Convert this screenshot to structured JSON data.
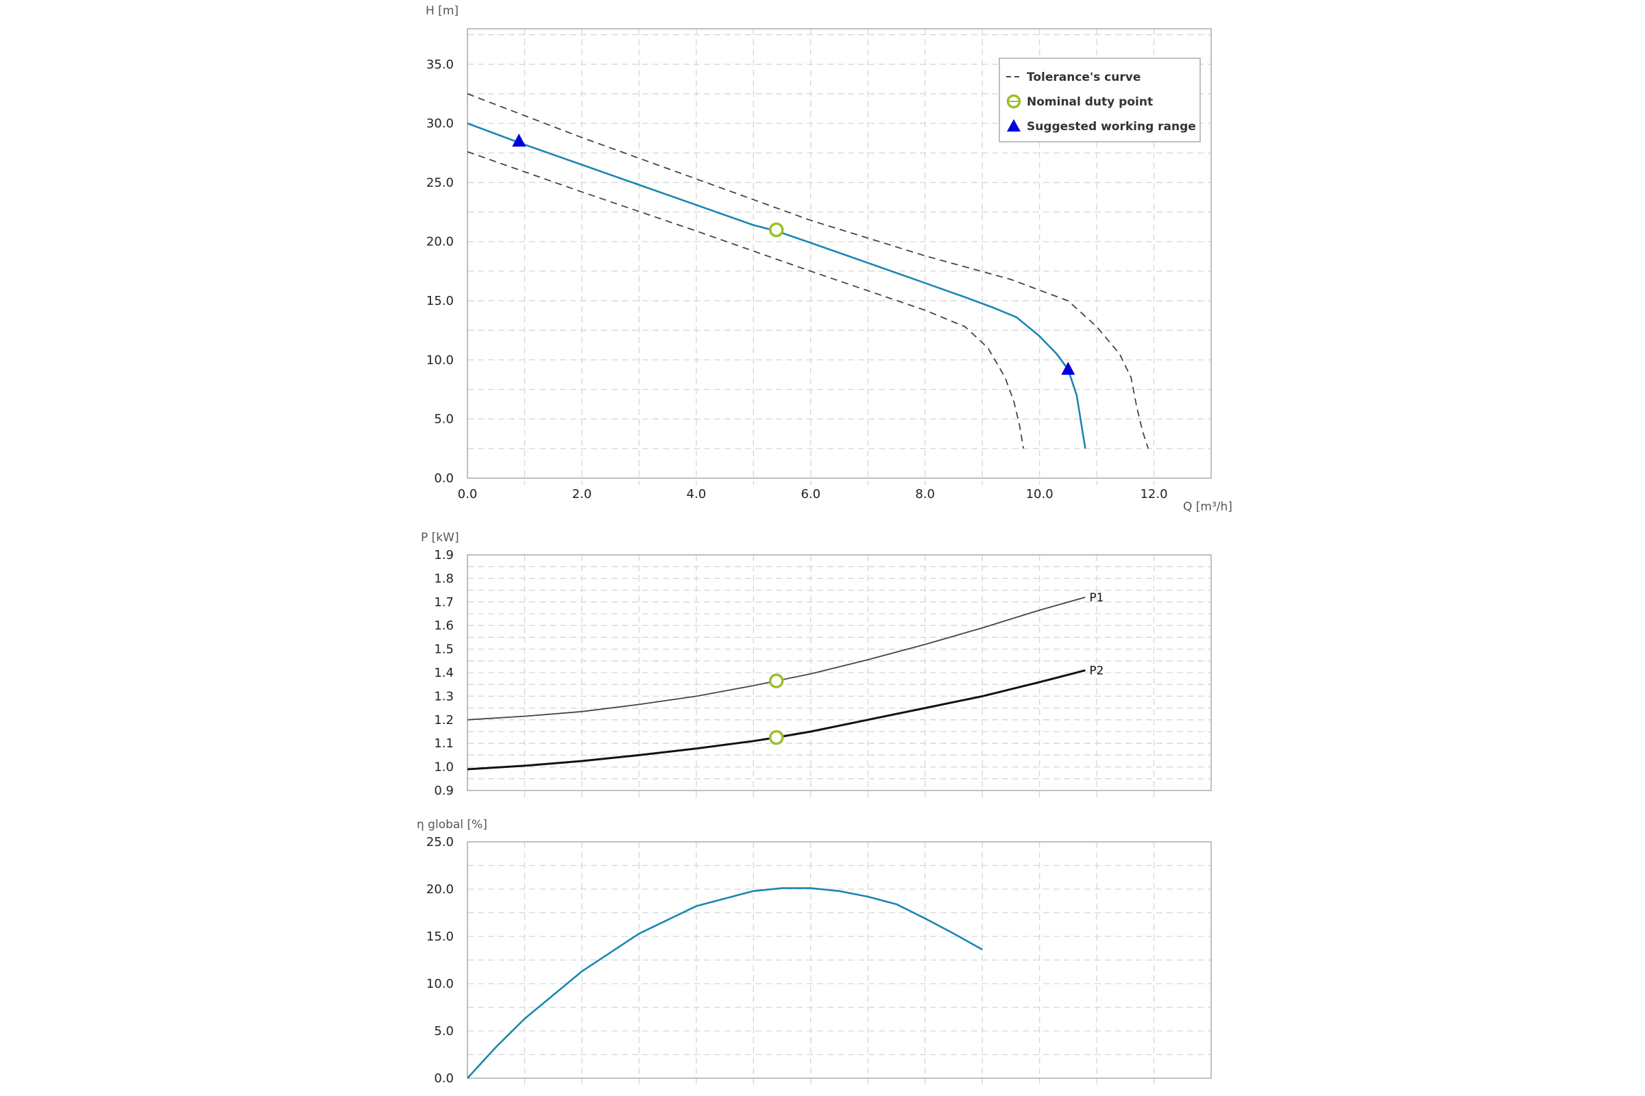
{
  "colors": {
    "curve": "#1a86b3",
    "tolerance": "#444444",
    "duty": "#9bbf2a",
    "range": "#0000dd",
    "p1": "#444444",
    "p2": "#111111",
    "grid": "#d6d6d6",
    "frame": "#aaaaaa"
  },
  "chart_data": [
    {
      "type": "line",
      "xlabel": "Q [m³/h]",
      "ylabel": "H [m]",
      "xlim": [
        0,
        13
      ],
      "ylim": [
        0,
        38
      ],
      "x_ticks": [
        "0.0",
        "2.0",
        "4.0",
        "6.0",
        "8.0",
        "10.0",
        "12.0"
      ],
      "y_ticks": [
        "0.0",
        "5.0",
        "10.0",
        "15.0",
        "20.0",
        "25.0",
        "30.0",
        "35.0"
      ],
      "grid": true,
      "legend_position": "top-right",
      "legend": [
        "Tolerance's curve",
        "Nominal duty point",
        "Suggested working range"
      ],
      "series": [
        {
          "role": "curve",
          "x": [
            0,
            1,
            2,
            3,
            4,
            5,
            5.4,
            6,
            7,
            8,
            8.7,
            9.2,
            9.6,
            10.0,
            10.3,
            10.5,
            10.65,
            10.8
          ],
          "y": [
            30.0,
            28.2,
            26.5,
            24.8,
            23.1,
            21.4,
            20.9,
            19.9,
            18.2,
            16.5,
            15.3,
            14.4,
            13.6,
            12.0,
            10.5,
            9.2,
            7.0,
            2.5
          ]
        },
        {
          "role": "tolerance-upper",
          "x": [
            0,
            2,
            4,
            6,
            8,
            9.5,
            10.5,
            11.0,
            11.4,
            11.6,
            11.7,
            11.8,
            11.9
          ],
          "y": [
            32.5,
            28.8,
            25.3,
            21.8,
            18.8,
            16.8,
            15.0,
            12.8,
            10.5,
            8.5,
            6.0,
            4.0,
            2.5
          ]
        },
        {
          "role": "tolerance-lower",
          "x": [
            0,
            2,
            4,
            6,
            8,
            8.7,
            9.1,
            9.4,
            9.55,
            9.65,
            9.72
          ],
          "y": [
            27.6,
            24.2,
            20.9,
            17.5,
            14.2,
            12.8,
            11.0,
            8.5,
            6.5,
            4.5,
            2.5
          ]
        }
      ],
      "duty_point": {
        "x": 5.4,
        "y": 21.0
      },
      "working_range": [
        {
          "x": 0.9,
          "y": 28.5
        },
        {
          "x": 10.5,
          "y": 9.2
        }
      ]
    },
    {
      "type": "line",
      "xlabel": "",
      "ylabel": "P [kW]",
      "xlim": [
        0,
        13
      ],
      "ylim": [
        0.9,
        1.9
      ],
      "y_ticks": [
        "0.9",
        "1.0",
        "1.1",
        "1.2",
        "1.3",
        "1.4",
        "1.5",
        "1.6",
        "1.7",
        "1.8",
        "1.9"
      ],
      "grid": true,
      "series": [
        {
          "name": "P1",
          "x": [
            0,
            1,
            2,
            3,
            4,
            5,
            5.4,
            6,
            7,
            8,
            9,
            10,
            10.8
          ],
          "y": [
            1.2,
            1.215,
            1.235,
            1.265,
            1.3,
            1.345,
            1.365,
            1.395,
            1.455,
            1.52,
            1.59,
            1.665,
            1.72
          ]
        },
        {
          "name": "P2",
          "x": [
            0,
            1,
            2,
            3,
            4,
            5,
            5.4,
            6,
            7,
            8,
            9,
            10,
            10.8
          ],
          "y": [
            0.99,
            1.005,
            1.025,
            1.05,
            1.078,
            1.11,
            1.125,
            1.15,
            1.2,
            1.25,
            1.3,
            1.36,
            1.41
          ]
        }
      ],
      "duty_points": [
        {
          "x": 5.4,
          "y": 1.365
        },
        {
          "x": 5.4,
          "y": 1.125
        }
      ]
    },
    {
      "type": "line",
      "xlabel": "",
      "ylabel": "η global [%]",
      "xlim": [
        0,
        13
      ],
      "ylim": [
        0,
        25
      ],
      "y_ticks": [
        "0.0",
        "5.0",
        "10.0",
        "15.0",
        "20.0",
        "25.0"
      ],
      "grid": true,
      "series": [
        {
          "role": "efficiency",
          "x": [
            0,
            0.5,
            1,
            2,
            3,
            4,
            5,
            5.5,
            6,
            6.5,
            7,
            7.5,
            8,
            8.5,
            9
          ],
          "y": [
            0,
            3.3,
            6.3,
            11.3,
            15.3,
            18.2,
            19.8,
            20.1,
            20.1,
            19.8,
            19.2,
            18.4,
            16.9,
            15.3,
            13.6
          ]
        }
      ]
    }
  ]
}
